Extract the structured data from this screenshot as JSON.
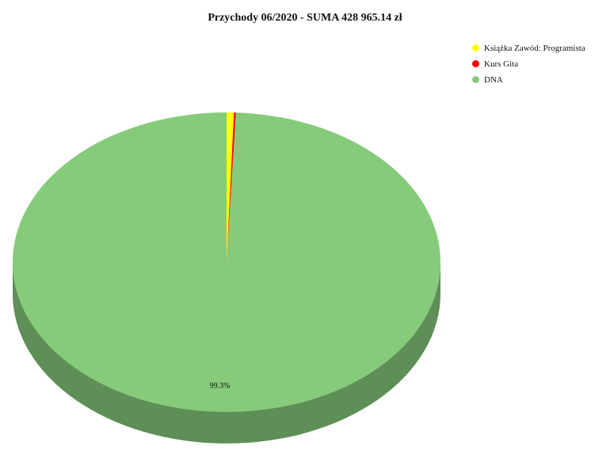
{
  "chart_data": {
    "type": "pie",
    "title": "Przychody 06/2020 - SUMA 428 965.14 zł",
    "legend_position": "top-right",
    "three_d": true,
    "slices": [
      {
        "label": "Książka Zawód: Programista",
        "value": 0.55,
        "color": "#ffff00",
        "side_color": "#b2b200",
        "value_label": ""
      },
      {
        "label": "Kurs Gita",
        "value": 0.15,
        "color": "#ff0000",
        "side_color": "#b20000",
        "value_label": ""
      },
      {
        "label": "DNA",
        "value": 99.3,
        "color": "#85cb7a",
        "side_color": "#5e8f56",
        "value_label": "99.3%"
      }
    ]
  }
}
